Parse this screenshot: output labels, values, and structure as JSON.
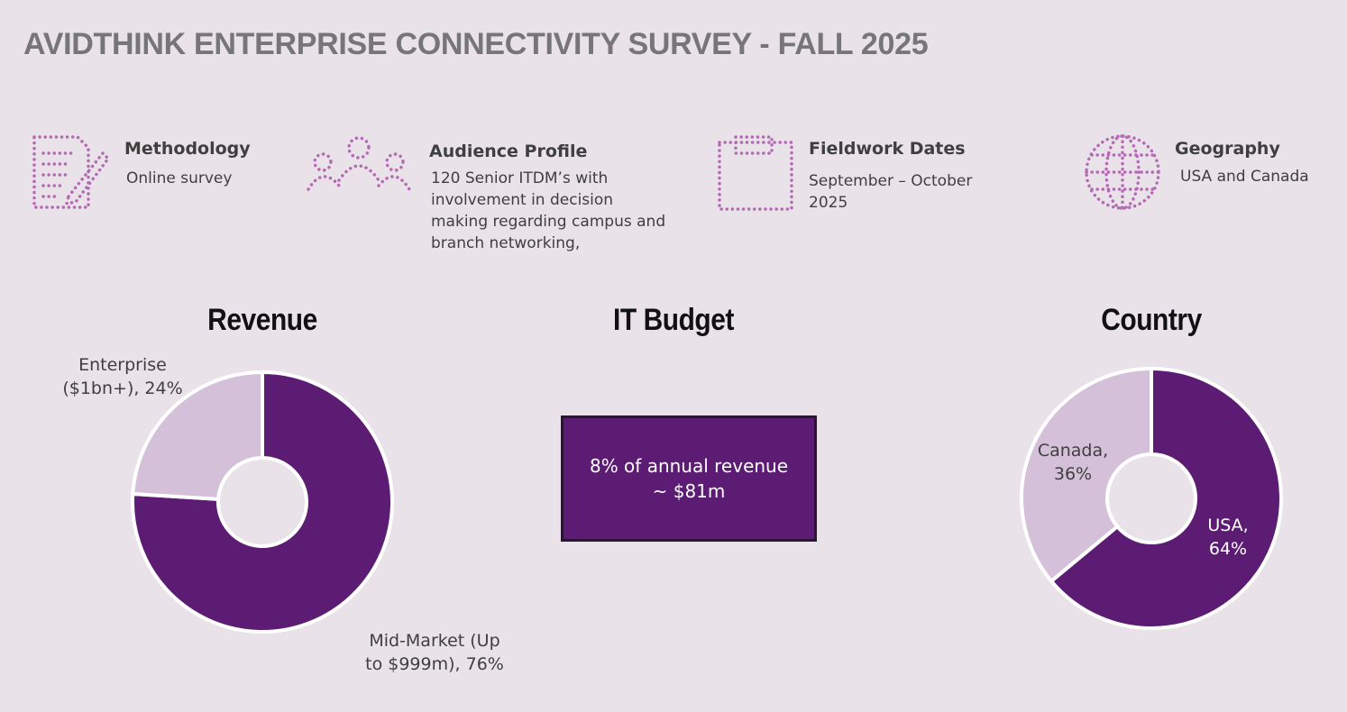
{
  "title": "AVIDTHINK ENTERPRISE CONNECTIVITY SURVEY - FALL 2025",
  "colors": {
    "background": "#e9e2e9",
    "dark_purple": "#5c1c74",
    "light_purple": "#d4c0d8",
    "icon_pink": "#b46ab4"
  },
  "info": [
    {
      "icon": "document-pen-icon",
      "title": "Methodology",
      "text": "Online survey"
    },
    {
      "icon": "people-group-icon",
      "title": "Audience Profile",
      "text": "120 Senior ITDM’s with involvement in decision making regarding campus and branch networking,"
    },
    {
      "icon": "clipboard-icon",
      "title": "Fieldwork Dates",
      "text": "September – October 2025"
    },
    {
      "icon": "globe-icon",
      "title": "Geography",
      "text": "USA and Canada"
    }
  ],
  "sections": {
    "revenue": "Revenue",
    "budget": "IT Budget",
    "country": "Country"
  },
  "budget": {
    "line1": "8% of annual revenue",
    "line2": "~ $81m"
  },
  "chart_data": [
    {
      "type": "pie",
      "donut": true,
      "title": "Revenue",
      "slices": [
        {
          "label": "Mid-Market (Up to $999m)",
          "value": 76,
          "color": "#5c1c74"
        },
        {
          "label": "Enterprise ($1bn+)",
          "value": 24,
          "color": "#d4c0d8"
        }
      ],
      "labels": {
        "enterprise": [
          "Enterprise",
          "($1bn+), 24%"
        ],
        "midmarket": [
          "Mid-Market (Up",
          "to $999m), 76%"
        ]
      }
    },
    {
      "type": "pie",
      "donut": true,
      "title": "Country",
      "slices": [
        {
          "label": "USA",
          "value": 64,
          "color": "#5c1c74"
        },
        {
          "label": "Canada",
          "value": 36,
          "color": "#d4c0d8"
        }
      ],
      "labels": {
        "canada": [
          "Canada,",
          "36%"
        ],
        "usa": [
          "USA,",
          "64%"
        ]
      }
    }
  ]
}
